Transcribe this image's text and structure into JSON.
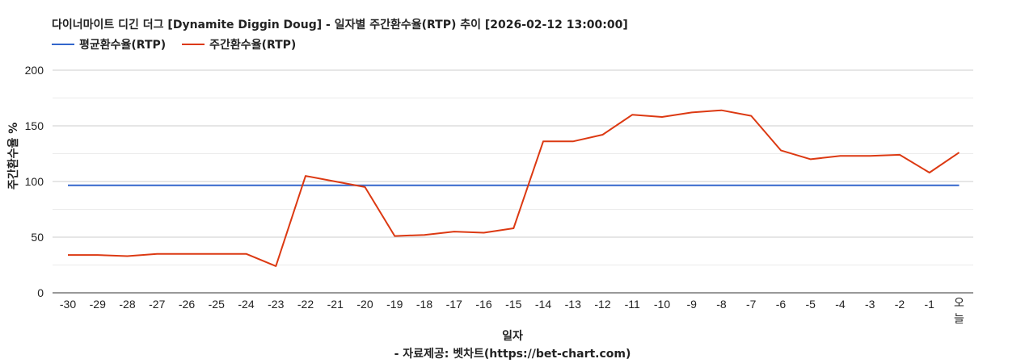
{
  "chart_data": {
    "type": "line",
    "title": "다이너마이트 디긴 더그 [Dynamite Diggin Doug] - 일자별 주간환수율(RTP) 추이 [2026-02-12 13:00:00]",
    "xlabel": "일자",
    "ylabel": "주간환수율 %",
    "source": "- 자료제공: 벳차트(https://bet-chart.com)",
    "ylim": [
      0,
      200
    ],
    "yticks": [
      "0",
      "50",
      "100",
      "150",
      "200"
    ],
    "grid": true,
    "legend_position": "top-left",
    "categories": [
      "-30",
      "-29",
      "-28",
      "-27",
      "-26",
      "-25",
      "-24",
      "-23",
      "-22",
      "-21",
      "-20",
      "-19",
      "-18",
      "-17",
      "-16",
      "-15",
      "-14",
      "-13",
      "-12",
      "-11",
      "-10",
      "-9",
      "-8",
      "-7",
      "-6",
      "-5",
      "-4",
      "-3",
      "-2",
      "-1",
      "오늘"
    ],
    "series": [
      {
        "name": "평균환수율(RTP)",
        "color": "#3366cc",
        "values": [
          96.5,
          96.5,
          96.5,
          96.5,
          96.5,
          96.5,
          96.5,
          96.5,
          96.5,
          96.5,
          96.5,
          96.5,
          96.5,
          96.5,
          96.5,
          96.5,
          96.5,
          96.5,
          96.5,
          96.5,
          96.5,
          96.5,
          96.5,
          96.5,
          96.5,
          96.5,
          96.5,
          96.5,
          96.5,
          96.5,
          96.5
        ]
      },
      {
        "name": "주간환수율(RTP)",
        "color": "#dc3912",
        "values": [
          34,
          34,
          33,
          35,
          35,
          35,
          35,
          24,
          105,
          100,
          95,
          51,
          52,
          55,
          54,
          58,
          136,
          136,
          142,
          160,
          158,
          162,
          164,
          159,
          128,
          120,
          123,
          123,
          124,
          108,
          126
        ]
      }
    ]
  }
}
